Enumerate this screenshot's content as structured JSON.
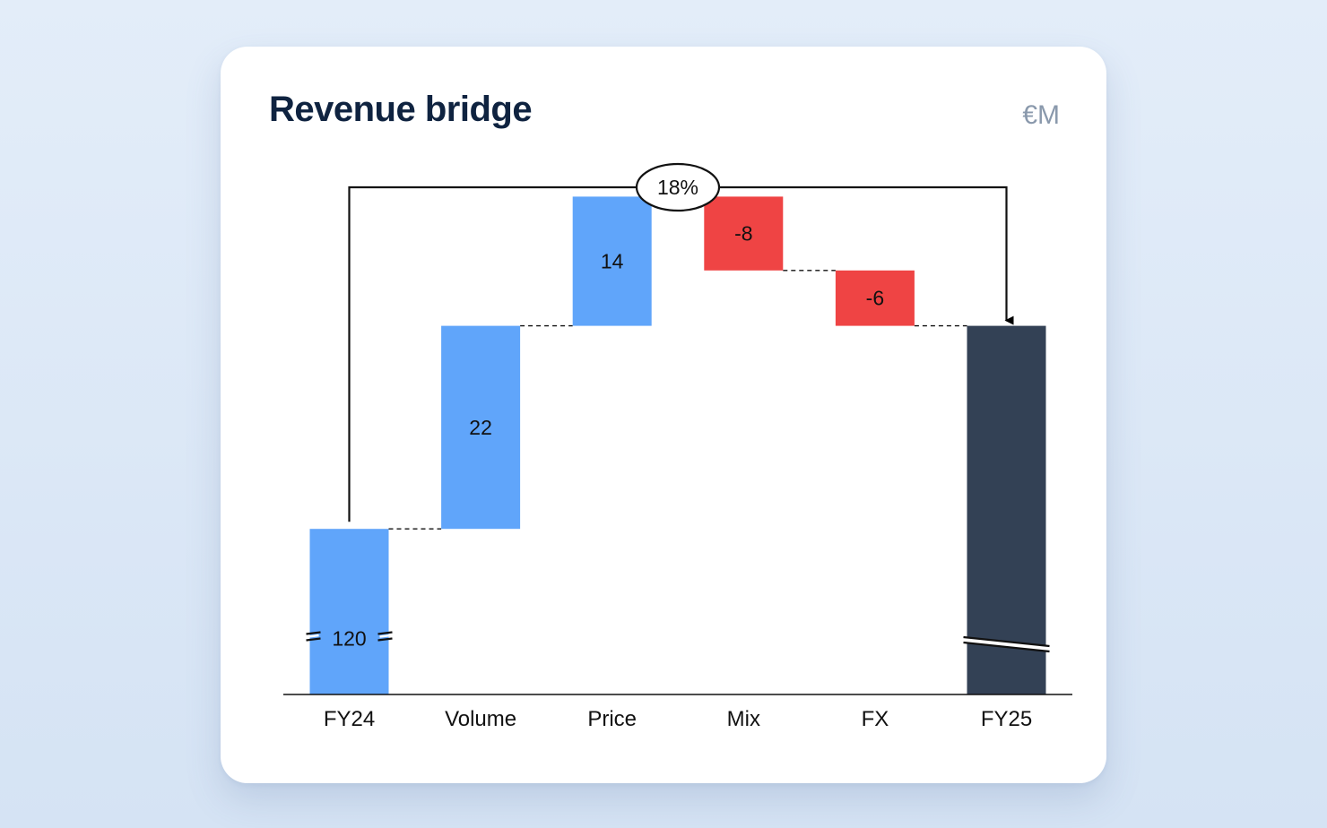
{
  "card": {
    "title": "Revenue bridge",
    "unit": "€M"
  },
  "chart_data": {
    "type": "waterfall",
    "title": "Revenue bridge",
    "unit": "€M",
    "categories": [
      "FY24",
      "Volume",
      "Price",
      "Mix",
      "FX",
      "FY25"
    ],
    "steps": [
      {
        "label": "FY24",
        "value": 120,
        "kind": "total",
        "display": "120"
      },
      {
        "label": "Volume",
        "value": 22,
        "kind": "delta",
        "display": "22"
      },
      {
        "label": "Price",
        "value": 14,
        "kind": "delta",
        "display": "14"
      },
      {
        "label": "Mix",
        "value": -8,
        "kind": "delta",
        "display": "-8"
      },
      {
        "label": "FX",
        "value": -6,
        "kind": "delta",
        "display": "-6"
      },
      {
        "label": "FY25",
        "value": 142,
        "kind": "total",
        "display": ""
      }
    ],
    "change_annotation": {
      "from": "FY24",
      "to": "FY25",
      "label": "18%"
    },
    "axis_break": true,
    "colors": {
      "start_total": "#60a5fa",
      "increase": "#60a5fa",
      "decrease": "#ef4444",
      "end_total": "#334155"
    }
  }
}
